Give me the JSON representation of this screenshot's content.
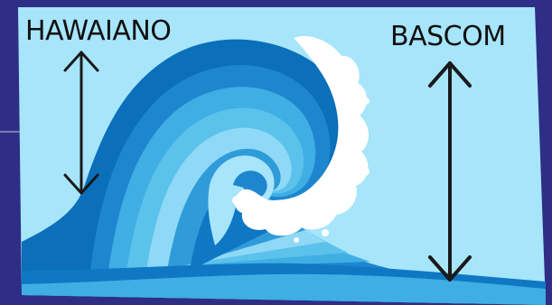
{
  "diagram": {
    "label_left": "HAWAIANO",
    "label_right": "BASCOM"
  },
  "colors": {
    "background": "#2f2e86",
    "sky": "#a7e5fb",
    "wave_dark": "#0b6fb9",
    "wave_bands": [
      "#0e78c4",
      "#2f9bd9",
      "#5bc2ec",
      "#8fd9f6",
      "#3faee3",
      "#1e86cf",
      "#0b6fb9"
    ],
    "foam": "#ffffff",
    "arrow": "#1a1a1a"
  },
  "icons": [
    "wave-illustration",
    "double-arrow-icon",
    "foam-splash"
  ]
}
